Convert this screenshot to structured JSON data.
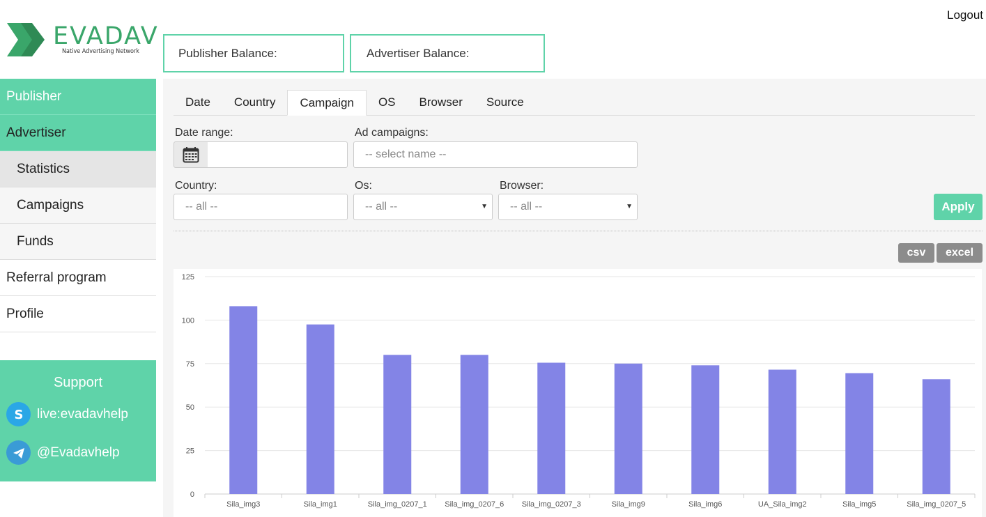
{
  "brand": {
    "name": "EVADAV",
    "tagline": "Native Advertising Network",
    "accent": "#5fd3a9"
  },
  "header": {
    "logout": "Logout",
    "publisher_balance": "Publisher Balance:",
    "advertiser_balance": "Advertiser Balance:"
  },
  "sidebar": {
    "items": [
      {
        "label": "Publisher"
      },
      {
        "label": "Advertiser"
      },
      {
        "label": "Statistics"
      },
      {
        "label": "Campaigns"
      },
      {
        "label": "Funds"
      },
      {
        "label": "Referral program"
      },
      {
        "label": "Profile"
      }
    ],
    "support": {
      "title": "Support",
      "skype": "live:evadavhelp",
      "telegram": "@Evadavhelp"
    }
  },
  "tabs": [
    "Date",
    "Country",
    "Campaign",
    "OS",
    "Browser",
    "Source"
  ],
  "active_tab": "Campaign",
  "filters": {
    "date_range_label": "Date range:",
    "date_range_value": "",
    "ad_campaigns_label": "Ad campaigns:",
    "ad_campaigns_placeholder": "-- select name --",
    "country_label": "Country:",
    "country_value": "-- all --",
    "os_label": "Os:",
    "os_value": "-- all --",
    "browser_label": "Browser:",
    "browser_value": "-- all --",
    "apply": "Apply"
  },
  "export": {
    "csv": "csv",
    "excel": "excel"
  },
  "chart_data": {
    "type": "bar",
    "categories": [
      "Sila_img3",
      "Sila_img1",
      "Sila_img_0207_1",
      "Sila_img_0207_6",
      "Sila_img_0207_3",
      "Sila_img9",
      "Sila_img6",
      "UA_Sila_img2",
      "Sila_img5",
      "Sila_img_0207_5"
    ],
    "values": [
      108,
      97.5,
      80,
      80,
      75.5,
      75,
      74,
      71.5,
      69.5,
      66
    ],
    "ylim": [
      0,
      125
    ],
    "yticks": [
      0,
      25,
      50,
      75,
      100,
      125
    ],
    "color": "#8384e6",
    "grid": true
  }
}
